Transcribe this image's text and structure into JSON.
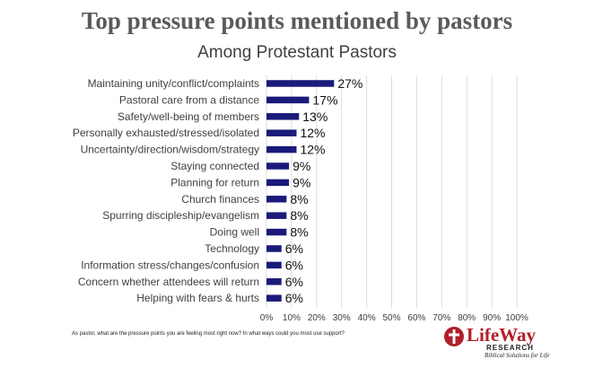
{
  "page": {
    "title": "Top pressure points mentioned by pastors",
    "subtitle": "Among Protestant Pastors",
    "footnote": "As pastor, what are the pressure points you are feeling most right now? In what ways could you most use support?"
  },
  "logo": {
    "name": "LifeWay",
    "research": "RESEARCH",
    "tagline": "Biblical Solutions for Life",
    "color": "#b0202a"
  },
  "chart_data": {
    "type": "bar",
    "orientation": "horizontal",
    "title": "Top pressure points mentioned by pastors",
    "subtitle": "Among Protestant Pastors",
    "categories": [
      "Maintaining unity/conflict/complaints",
      "Pastoral care from a distance",
      "Safety/well-being of members",
      "Personally exhausted/stressed/isolated",
      "Uncertainty/direction/wisdom/strategy",
      "Staying connected",
      "Planning for return",
      "Church finances",
      "Spurring discipleship/evangelism",
      "Doing well",
      "Technology",
      "Information stress/changes/confusion",
      "Concern whether attendees will return",
      "Helping with fears & hurts"
    ],
    "values": [
      27,
      17,
      13,
      12,
      12,
      9,
      9,
      8,
      8,
      8,
      6,
      6,
      6,
      6
    ],
    "value_labels": [
      "27%",
      "17%",
      "13%",
      "12%",
      "12%",
      "9%",
      "9%",
      "8%",
      "8%",
      "8%",
      "6%",
      "6%",
      "6%",
      "6%"
    ],
    "xlim": [
      0,
      100
    ],
    "x_ticks": [
      0,
      10,
      20,
      30,
      40,
      50,
      60,
      70,
      80,
      90,
      100
    ],
    "x_tick_labels": [
      "0%",
      "10%",
      "20%",
      "30%",
      "40%",
      "50%",
      "60%",
      "70%",
      "80%",
      "90%",
      "100%"
    ],
    "xlabel": "",
    "ylabel": "",
    "grid": true,
    "legend": false,
    "bar_color": "#1a1a7a",
    "grid_color": "#dcdcdc"
  }
}
